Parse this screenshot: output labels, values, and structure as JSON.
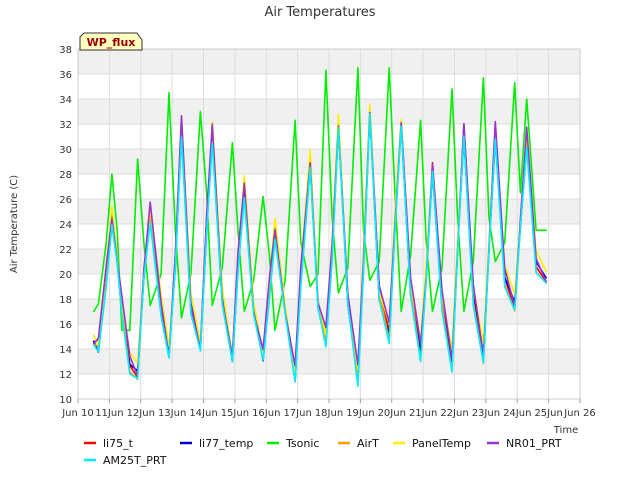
{
  "chart_data": {
    "type": "line",
    "title": "Air Temperatures",
    "xlabel": "Time",
    "ylabel": "Air Temperature (C)",
    "badge": "WP_flux",
    "xlim": [
      10,
      26
    ],
    "ylim": [
      10,
      38
    ],
    "x_ticks": [
      10,
      11,
      12,
      13,
      14,
      15,
      16,
      17,
      18,
      19,
      20,
      21,
      22,
      23,
      24,
      25,
      26
    ],
    "x_tick_labels": [
      "Jun 10",
      "11Jun",
      "12Jun",
      "13Jun",
      "14Jun",
      "15Jun",
      "16Jun",
      "17Jun",
      "18Jun",
      "19Jun",
      "20Jun",
      "21Jun",
      "22Jun",
      "23Jun",
      "24Jun",
      "25Jun",
      "Jun 26"
    ],
    "y_ticks": [
      10,
      12,
      14,
      16,
      18,
      20,
      22,
      24,
      26,
      28,
      30,
      32,
      34,
      36,
      38
    ],
    "grid": true,
    "legend_position": "bottom",
    "base_series": {
      "x": [
        10.5,
        10.65,
        10.9,
        11.08,
        11.25,
        11.4,
        11.65,
        11.9,
        12.1,
        12.3,
        12.65,
        12.9,
        13.1,
        13.3,
        13.6,
        13.9,
        14.1,
        14.28,
        14.6,
        14.92,
        15.1,
        15.3,
        15.6,
        15.9,
        16.1,
        16.28,
        16.6,
        16.92,
        17.1,
        17.4,
        17.65,
        17.9,
        18.1,
        18.3,
        18.6,
        18.92,
        19.1,
        19.3,
        19.6,
        19.92,
        20.1,
        20.3,
        20.6,
        20.92,
        21.1,
        21.3,
        21.6,
        21.92,
        22.1,
        22.3,
        22.6,
        22.92,
        23.1,
        23.3,
        23.6,
        23.92,
        24.1,
        24.3,
        24.6,
        24.92
      ],
      "values": [
        14.5,
        14.3,
        20.0,
        24.5,
        21.0,
        17.5,
        13.0,
        12.0,
        20.0,
        25.0,
        17.5,
        13.5,
        21.0,
        32.0,
        17.5,
        14.0,
        24.0,
        31.5,
        18.0,
        13.2,
        21.0,
        27.0,
        17.0,
        13.5,
        19.0,
        23.5,
        17.0,
        12.0,
        20.0,
        29.0,
        17.5,
        15.0,
        22.0,
        32.0,
        18.0,
        12.0,
        21.0,
        33.0,
        18.5,
        15.5,
        24.0,
        32.0,
        19.0,
        14.0,
        20.0,
        28.5,
        18.0,
        13.0,
        22.0,
        31.5,
        18.5,
        13.5,
        22.0,
        31.5,
        20.0,
        17.5,
        24.0,
        31.0,
        21.0,
        19.5
      ]
    },
    "series": [
      {
        "name": "li75_t",
        "color": "#ff0000",
        "offsets": {
          "default": 0.0
        }
      },
      {
        "name": "li77_temp",
        "color": "#0000cc",
        "offsets": {
          "default": -0.2
        }
      },
      {
        "name": "Tsonic",
        "color": "#00ee00",
        "offsets": {
          "default": 1.2
        }
      },
      {
        "name": "AirT",
        "color": "#ff9900",
        "offsets": {
          "default": -0.4
        }
      },
      {
        "name": "PanelTemp",
        "color": "#ffee00",
        "offsets": {
          "default": 0.5
        }
      },
      {
        "name": "NR01_PRT",
        "color": "#9933cc",
        "offsets": {
          "default": 0.3
        }
      },
      {
        "name": "AM25T_PRT",
        "color": "#00eeff",
        "offsets": {
          "default": -0.6
        }
      }
    ],
    "tsonic_peaks": [
      28.0,
      29.2,
      34.5,
      33.0,
      30.5,
      26.2,
      32.3,
      36.3,
      36.5,
      36.5,
      32.3,
      34.8,
      35.7,
      35.3
    ],
    "tsonic_troughs": [
      17.6,
      15.5,
      17.5,
      16.5,
      17.5,
      17.0,
      15.5,
      19.0,
      18.5,
      19.5,
      17.0,
      17.0,
      17.0,
      21.0
    ],
    "tsonic_end": 23.5
  }
}
